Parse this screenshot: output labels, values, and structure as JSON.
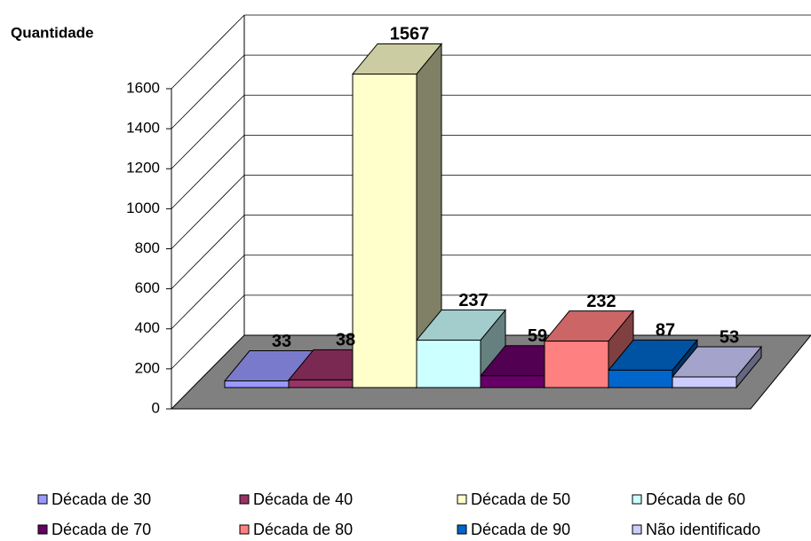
{
  "chart_data": {
    "type": "bar3d",
    "y_label": "Quantidade",
    "ylim": [
      0,
      1600
    ],
    "yticks": [
      0,
      200,
      400,
      600,
      800,
      1000,
      1200,
      1400,
      1600
    ],
    "grid": true,
    "legend": "bottom",
    "series": [
      {
        "name": "Década de 30",
        "color": "#9999ff",
        "values": [
          33
        ]
      },
      {
        "name": "Década de 40",
        "color": "#993366",
        "values": [
          38
        ]
      },
      {
        "name": "Década de 50",
        "color": "#ffffcc",
        "values": [
          1567
        ]
      },
      {
        "name": "Década de 60",
        "color": "#ccffff",
        "values": [
          237
        ]
      },
      {
        "name": "Década de 70",
        "color": "#660066",
        "values": [
          59
        ]
      },
      {
        "name": "Década de 80",
        "color": "#ff8080",
        "values": [
          232
        ]
      },
      {
        "name": "Década de 90",
        "color": "#0066cc",
        "values": [
          87
        ]
      },
      {
        "name": "Não identificado",
        "color": "#ccccff",
        "values": [
          53
        ]
      }
    ]
  }
}
